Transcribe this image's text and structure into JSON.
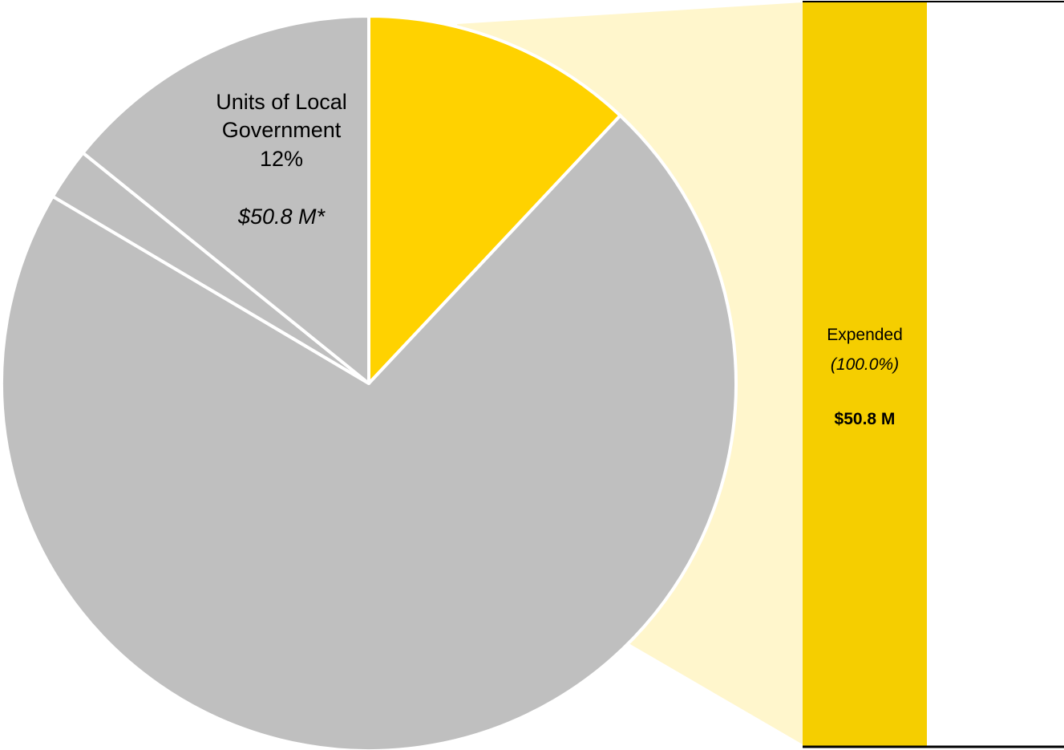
{
  "chart_data": [
    {
      "type": "pie",
      "slices": [
        {
          "label": "Units of Local Government",
          "percent_label": "12%",
          "amount_label": "$50.8 M*",
          "value": 12,
          "highlighted": true
        },
        {
          "label": "",
          "value": 71.5,
          "highlighted": false
        },
        {
          "label": "",
          "value": 2.3,
          "highlighted": false
        },
        {
          "label": "",
          "value": 14.2,
          "highlighted": false
        }
      ],
      "start": "12 o'clock",
      "direction": "clockwise"
    },
    {
      "type": "bar",
      "stacked": true,
      "categories": [
        "Units of Local Government"
      ],
      "series": [
        {
          "name": "Expended",
          "percent_label": "(100.0%)",
          "amount_label": "$50.8 M",
          "values": [
            100
          ]
        }
      ],
      "ylim": [
        0,
        100
      ]
    }
  ],
  "colors": {
    "highlight": "#FFD200",
    "bar_fill": "#F5CE00",
    "other": "#BFBFBF",
    "connector": "#FFF6CC",
    "border": "#000000"
  }
}
